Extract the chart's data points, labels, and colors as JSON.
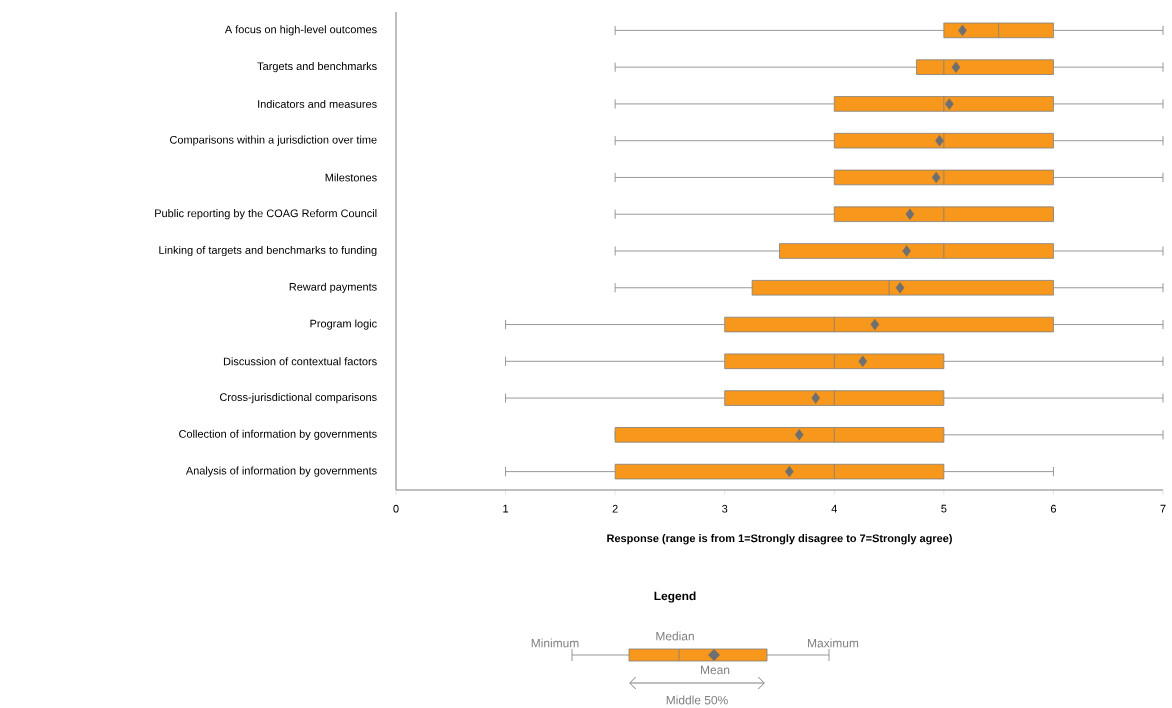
{
  "chart_data": {
    "type": "box",
    "orientation": "horizontal",
    "color": "#f7981d",
    "marker": "diamond",
    "categories": [
      "A focus on high-level outcomes",
      "Targets and benchmarks",
      "Indicators and measures",
      "Comparisons within a jurisdiction over time",
      "Milestones",
      "Public reporting by the COAG Reform Council",
      "Linking of targets and benchmarks to funding",
      "Reward payments",
      "Program logic",
      "Discussion of contextual factors",
      "Cross-jurisdictional comparisons",
      "Collection of information by governments",
      "Analysis of information by governments"
    ],
    "boxes": [
      {
        "low": 2,
        "q1": 5,
        "median": 5.5,
        "q3": 6,
        "high": 7,
        "mean": 5.17
      },
      {
        "low": 2,
        "q1": 4.75,
        "median": 5,
        "q3": 6,
        "high": 7,
        "mean": 5.11
      },
      {
        "low": 2,
        "q1": 4,
        "median": 5,
        "q3": 6,
        "high": 7,
        "mean": 5.05
      },
      {
        "low": 2,
        "q1": 4,
        "median": 5,
        "q3": 6,
        "high": 7,
        "mean": 4.96
      },
      {
        "low": 2,
        "q1": 4,
        "median": 5,
        "q3": 6,
        "high": 7,
        "mean": 4.93
      },
      {
        "low": 2,
        "q1": 4,
        "median": 5,
        "q3": 6,
        "high": 6,
        "mean": 4.69
      },
      {
        "low": 2,
        "q1": 3.5,
        "median": 5,
        "q3": 6,
        "high": 7,
        "mean": 4.66
      },
      {
        "low": 2,
        "q1": 3.25,
        "median": 4.5,
        "q3": 6,
        "high": 7,
        "mean": 4.6
      },
      {
        "low": 1,
        "q1": 3,
        "median": 4,
        "q3": 6,
        "high": 7,
        "mean": 4.37
      },
      {
        "low": 1,
        "q1": 3,
        "median": 4,
        "q3": 5,
        "high": 7,
        "mean": 4.26
      },
      {
        "low": 1,
        "q1": 3,
        "median": 4,
        "q3": 5,
        "high": 7,
        "mean": 3.83
      },
      {
        "low": 2,
        "q1": 2,
        "median": 4,
        "q3": 5,
        "high": 7,
        "mean": 3.68
      },
      {
        "low": 1,
        "q1": 2,
        "median": 4,
        "q3": 5,
        "high": 6,
        "mean": 3.59
      }
    ],
    "xlim": [
      0,
      7
    ],
    "xticks": [
      0,
      1,
      2,
      3,
      4,
      5,
      6,
      7
    ],
    "xlabel": "Response (range is from 1=Strongly disagree to 7=Strongly agree)",
    "annotations": [
      "Legend",
      "Minimum",
      "Median",
      "Maximum",
      "Mean",
      "Middle 50%"
    ]
  }
}
